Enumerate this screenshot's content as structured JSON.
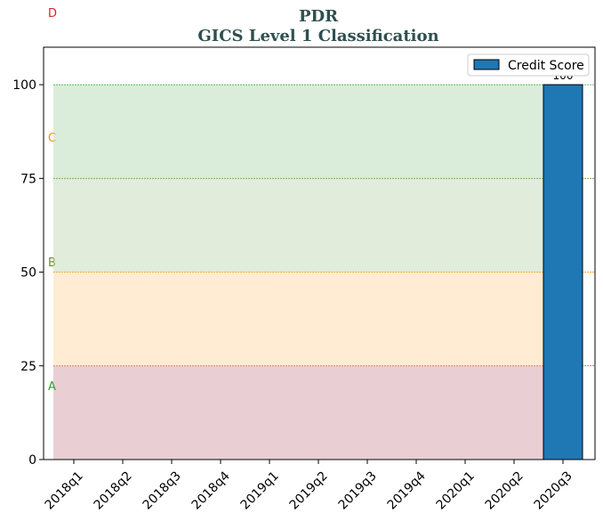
{
  "chart_data": {
    "type": "bar",
    "title": "PDR",
    "subtitle": "GICS Level 1 Classification",
    "xlabel": "",
    "ylabel": "",
    "categories": [
      "2018q1",
      "2018q2",
      "2018q3",
      "2018q4",
      "2019q1",
      "2019q2",
      "2019q3",
      "2019q4",
      "2020q1",
      "2020q2",
      "2020q3"
    ],
    "series": [
      {
        "name": "Credit Score",
        "values": [
          null,
          null,
          null,
          null,
          null,
          null,
          null,
          null,
          null,
          null,
          100
        ],
        "color": "#1f77b4"
      }
    ],
    "data_labels": [
      "100"
    ],
    "ylim": [
      0,
      110
    ],
    "yticks": [
      0,
      25,
      50,
      75,
      100
    ],
    "legend": "top-right",
    "grid": false,
    "bands": [
      {
        "label": "A",
        "from": 0,
        "to": 25,
        "fill": "#d4a0a8",
        "label_color": "#2ca02c",
        "line_color": "#c0392b"
      },
      {
        "label": "B",
        "from": 25,
        "to": 50,
        "fill": "#ffd9a8",
        "label_color": "#6b8e23",
        "line_color": "#ff8c00"
      },
      {
        "label": "C",
        "from": 50,
        "to": 75,
        "fill": "#c3d9b5",
        "label_color": "#ff8c00",
        "line_color": "#6b8e23"
      },
      {
        "label": "D",
        "from": 75,
        "to": 100,
        "fill": "#b6dbb6",
        "label_color": "#d62728",
        "line_color": "#2ca02c"
      }
    ]
  }
}
